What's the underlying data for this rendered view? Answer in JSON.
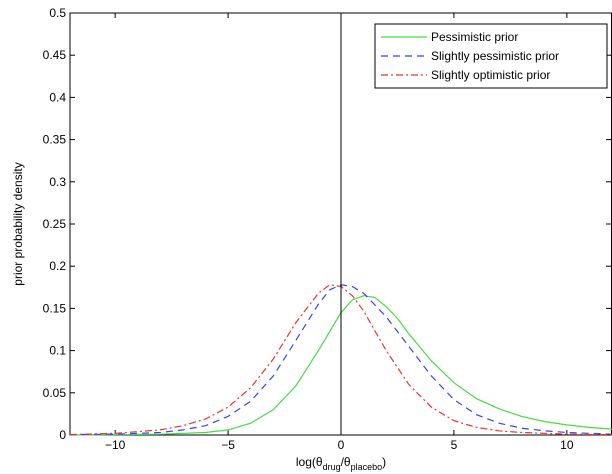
{
  "chart_data": {
    "type": "line",
    "xlabel": {
      "prefix": "log(θ",
      "sub1": "drug",
      "mid": "/θ",
      "sub2": "placebo",
      "suffix": ")"
    },
    "ylabel": "prior probability density",
    "xlim": [
      -12,
      12
    ],
    "ylim": [
      0,
      0.5
    ],
    "xticks": [
      -10,
      -5,
      0,
      5,
      10
    ],
    "xtick_labels": [
      "−10",
      "−5",
      "0",
      "5",
      "10"
    ],
    "yticks": [
      0,
      0.05,
      0.1,
      0.15,
      0.2,
      0.25,
      0.3,
      0.35,
      0.4,
      0.45,
      0.5
    ],
    "ytick_labels": [
      "0",
      "0.05",
      "0.1",
      "0.15",
      "0.2",
      "0.25",
      "0.3",
      "0.35",
      "0.4",
      "0.45",
      "0.5"
    ],
    "vertical_reference_line_x": 0,
    "legend_position": "top-right",
    "series": [
      {
        "name": "Pessimistic prior",
        "color": "#44dd44",
        "dash": "solid",
        "x": [
          -12,
          -10,
          -8,
          -6,
          -5,
          -4,
          -3,
          -2,
          -1,
          0,
          0.5,
          1,
          1.5,
          2,
          2.5,
          3,
          4,
          5,
          6,
          7,
          8,
          9,
          10,
          11,
          12
        ],
        "y": [
          0.0,
          0.0005,
          0.001,
          0.003,
          0.006,
          0.014,
          0.03,
          0.058,
          0.1,
          0.145,
          0.16,
          0.165,
          0.163,
          0.152,
          0.138,
          0.12,
          0.088,
          0.062,
          0.043,
          0.031,
          0.022,
          0.016,
          0.012,
          0.009,
          0.007
        ]
      },
      {
        "name": "Slightly pessimistic prior",
        "color": "#3344ee",
        "dash": "dashed",
        "x": [
          -12,
          -10,
          -8,
          -7,
          -6,
          -5,
          -4,
          -3,
          -2,
          -1,
          -0.5,
          0,
          0.5,
          1,
          2,
          3,
          4,
          5,
          6,
          7,
          8,
          9,
          10,
          12
        ],
        "y": [
          0.0005,
          0.001,
          0.003,
          0.006,
          0.011,
          0.022,
          0.04,
          0.07,
          0.112,
          0.155,
          0.172,
          0.178,
          0.176,
          0.168,
          0.14,
          0.105,
          0.07,
          0.042,
          0.024,
          0.014,
          0.008,
          0.005,
          0.003,
          0.001
        ]
      },
      {
        "name": "Slightly optimistic prior",
        "color": "#ee3333",
        "dash": "dashdot",
        "x": [
          -12,
          -10,
          -8,
          -7,
          -6,
          -5,
          -4,
          -3,
          -2,
          -1,
          -0.5,
          0,
          0.5,
          1,
          2,
          3,
          4,
          5,
          6,
          7,
          8,
          9,
          10,
          12
        ],
        "y": [
          0.0005,
          0.002,
          0.006,
          0.011,
          0.019,
          0.033,
          0.056,
          0.09,
          0.133,
          0.168,
          0.178,
          0.176,
          0.165,
          0.147,
          0.1,
          0.06,
          0.033,
          0.017,
          0.009,
          0.005,
          0.003,
          0.002,
          0.001,
          0.0005
        ]
      }
    ]
  }
}
